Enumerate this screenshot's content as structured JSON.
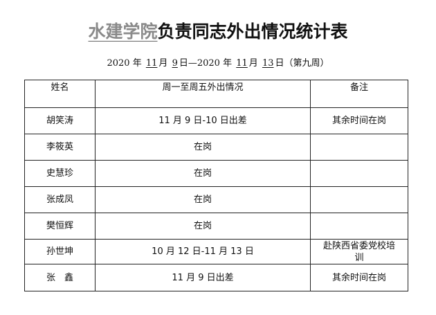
{
  "title": {
    "org": "水建学院",
    "rest": "负责同志外出情况统计表"
  },
  "date_range": {
    "y1": "2020",
    "m1": "11",
    "d1": "9",
    "y2": "2020",
    "m2": "11",
    "d2": "13",
    "week": "（第九周）",
    "year_char": "年",
    "month_char": "月",
    "day_char": "日",
    "dash": "—"
  },
  "table": {
    "headers": [
      "姓名",
      "周一至周五外出情况",
      "备注"
    ],
    "rows": [
      {
        "name": "胡笑涛",
        "status": "11 月 9 日-10 日出差",
        "note": "其余时间在岗"
      },
      {
        "name": "李筱英",
        "status": "在岗",
        "note": ""
      },
      {
        "name": "史慧珍",
        "status": "在岗",
        "note": ""
      },
      {
        "name": "张成凤",
        "status": "在岗",
        "note": ""
      },
      {
        "name": "樊恒辉",
        "status": "在岗",
        "note": ""
      },
      {
        "name": "孙世坤",
        "status": "10 月 12 日-11 月 13 日",
        "note": "赴陕西省委党校培训"
      },
      {
        "name": "张　鑫",
        "status": "11 月 9 日出差",
        "note": "其余时间在岗"
      }
    ]
  }
}
